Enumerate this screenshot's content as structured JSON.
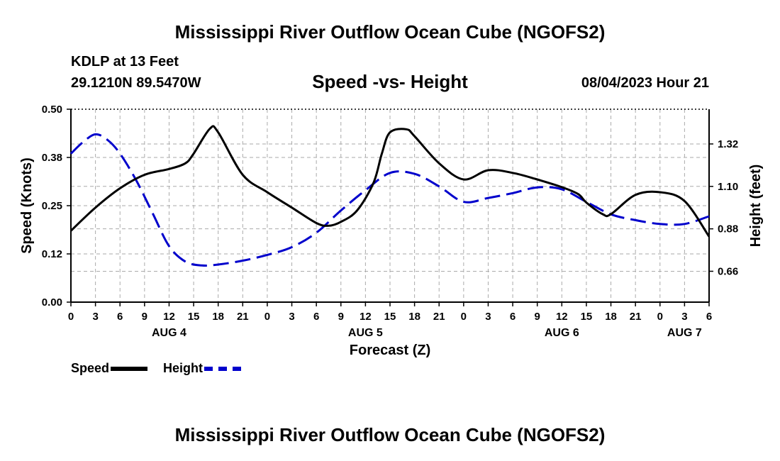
{
  "title": "Mississippi River Outflow Ocean Cube (NGOFS2)",
  "footer_title": "Mississippi River Outflow Ocean Cube (NGOFS2)",
  "station": "KDLP at 13 Feet",
  "coordinates": "29.1210N  89.5470W",
  "subtitle": "Speed -vs- Height",
  "datetime": "08/04/2023 Hour 21",
  "legend": {
    "speed": "Speed",
    "height": "Height"
  },
  "colors": {
    "speed": "#000000",
    "height": "#0000cc",
    "grid": "#aaaaaa"
  },
  "chart_data": {
    "type": "line",
    "xlabel": "Forecast (Z)",
    "ylabel_left": "Speed (Knots)",
    "ylabel_right": "Height (feet)",
    "x_unit": "hours from 00Z Aug 4",
    "xlim": [
      0,
      78
    ],
    "ylim_left": [
      0,
      0.5
    ],
    "ylim_right": [
      0.5,
      1.5
    ],
    "x_ticks": [
      {
        "x": 0,
        "label": "0"
      },
      {
        "x": 3,
        "label": "3"
      },
      {
        "x": 6,
        "label": "6"
      },
      {
        "x": 9,
        "label": "9"
      },
      {
        "x": 12,
        "label": "12"
      },
      {
        "x": 15,
        "label": "15"
      },
      {
        "x": 18,
        "label": "18"
      },
      {
        "x": 21,
        "label": "21"
      },
      {
        "x": 24,
        "label": "0"
      },
      {
        "x": 27,
        "label": "3"
      },
      {
        "x": 30,
        "label": "6"
      },
      {
        "x": 33,
        "label": "9"
      },
      {
        "x": 36,
        "label": "12"
      },
      {
        "x": 39,
        "label": "15"
      },
      {
        "x": 42,
        "label": "18"
      },
      {
        "x": 45,
        "label": "21"
      },
      {
        "x": 48,
        "label": "0"
      },
      {
        "x": 51,
        "label": "3"
      },
      {
        "x": 54,
        "label": "6"
      },
      {
        "x": 57,
        "label": "9"
      },
      {
        "x": 60,
        "label": "12"
      },
      {
        "x": 63,
        "label": "15"
      },
      {
        "x": 66,
        "label": "18"
      },
      {
        "x": 69,
        "label": "21"
      },
      {
        "x": 72,
        "label": "0"
      },
      {
        "x": 75,
        "label": "3"
      },
      {
        "x": 78,
        "label": "6"
      }
    ],
    "day_labels": [
      {
        "x": 12,
        "label": "AUG 4"
      },
      {
        "x": 36,
        "label": "AUG 5"
      },
      {
        "x": 60,
        "label": "AUG 6"
      },
      {
        "x": 75,
        "label": "AUG 7"
      }
    ],
    "y_ticks_left": [
      {
        "v": 0.0,
        "label": "0.00"
      },
      {
        "v": 0.125,
        "label": "0.12"
      },
      {
        "v": 0.25,
        "label": "0.25"
      },
      {
        "v": 0.375,
        "label": "0.38"
      },
      {
        "v": 0.5,
        "label": "0.50"
      }
    ],
    "y_ticks_right": [
      {
        "v": 0.66,
        "label": "0.66"
      },
      {
        "v": 0.88,
        "label": "0.88"
      },
      {
        "v": 1.1,
        "label": "1.10"
      },
      {
        "v": 1.32,
        "label": "1.32"
      }
    ],
    "series": [
      {
        "name": "Speed",
        "axis": "left",
        "style": "solid",
        "x": [
          0,
          3,
          6,
          9,
          12,
          14,
          15,
          17,
          18,
          21,
          24,
          27,
          30,
          31.5,
          33,
          35,
          37,
          38,
          39,
          41,
          42,
          45,
          48,
          51,
          54,
          57,
          60,
          62,
          63,
          65,
          66,
          69,
          72,
          75,
          78
        ],
        "y": [
          0.185,
          0.245,
          0.295,
          0.33,
          0.345,
          0.36,
          0.385,
          0.45,
          0.44,
          0.33,
          0.285,
          0.245,
          0.205,
          0.198,
          0.208,
          0.238,
          0.31,
          0.385,
          0.44,
          0.448,
          0.43,
          0.36,
          0.318,
          0.342,
          0.335,
          0.318,
          0.298,
          0.28,
          0.258,
          0.228,
          0.228,
          0.278,
          0.285,
          0.262,
          0.17
        ]
      },
      {
        "name": "Height",
        "axis": "right",
        "style": "dashed",
        "x": [
          0,
          1.5,
          3,
          4.5,
          6,
          8,
          10,
          12,
          14,
          16,
          18,
          21,
          24,
          27,
          30,
          33,
          36,
          39,
          42,
          45,
          48,
          51,
          54,
          57,
          60,
          63,
          66,
          69,
          72,
          75,
          78
        ],
        "y": [
          1.27,
          1.33,
          1.37,
          1.34,
          1.27,
          1.13,
          0.96,
          0.79,
          0.71,
          0.69,
          0.695,
          0.715,
          0.745,
          0.785,
          0.86,
          0.975,
          1.08,
          1.17,
          1.165,
          1.1,
          1.02,
          1.04,
          1.065,
          1.095,
          1.085,
          1.02,
          0.955,
          0.925,
          0.905,
          0.905,
          0.945
        ]
      }
    ]
  }
}
